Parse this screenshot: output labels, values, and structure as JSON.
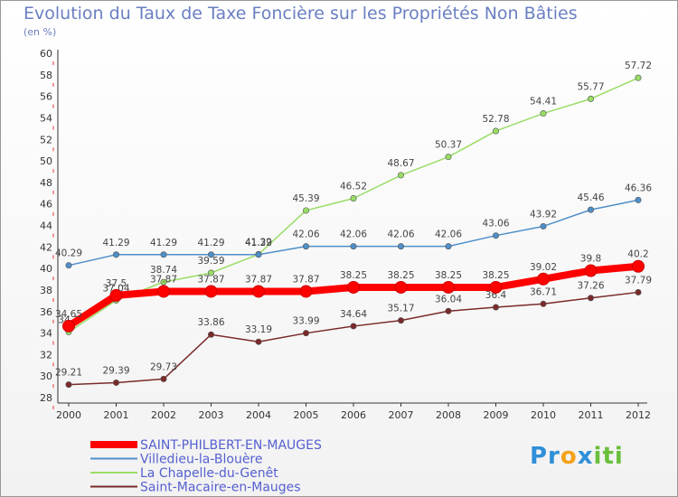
{
  "title": "Evolution du Taux de Taxe Foncière sur les Propriétés Non Bâties",
  "subtitle": "(en %)",
  "logo": {
    "p1": "Pr",
    "p2": "o",
    "p3": "x",
    "p4": "iti"
  },
  "chart_data": {
    "type": "line",
    "title": "Evolution du Taux de Taxe Foncière sur les Propriétés Non Bâties",
    "ylabel": "(en %)",
    "x": [
      "2000",
      "2001",
      "2002",
      "2003",
      "2004",
      "2005",
      "2006",
      "2007",
      "2008",
      "2009",
      "2010",
      "2011",
      "2012"
    ],
    "ylim": [
      28,
      60
    ],
    "yticks": [
      28,
      30,
      32,
      34,
      36,
      38,
      40,
      42,
      44,
      46,
      48,
      50,
      52,
      54,
      56,
      58,
      60
    ],
    "grid": false,
    "legend_position": "bottom-left",
    "series": [
      {
        "name": "SAINT-PHILBERT-EN-MAUGES",
        "color": "#ff0000",
        "width": 8,
        "labels": [
          "34.65",
          "37.5",
          "37.87",
          "37.87",
          "37.87",
          "37.87",
          "38.25",
          "38.25",
          "38.25",
          "38.25",
          "39.02",
          "39.8",
          "40.2"
        ],
        "values": [
          34.65,
          37.5,
          37.87,
          37.87,
          37.87,
          37.87,
          38.25,
          38.25,
          38.25,
          38.25,
          39.02,
          39.8,
          40.2
        ]
      },
      {
        "name": "Villedieu-la-Blouère",
        "color": "#4f8fc8",
        "width": 1.5,
        "labels": [
          "40.29",
          "41.29",
          "41.29",
          "41.29",
          "41.29",
          "42.06",
          "42.06",
          "42.06",
          "42.06",
          "43.06",
          "43.92",
          "45.46",
          "46.36"
        ],
        "values": [
          40.29,
          41.29,
          41.29,
          41.29,
          41.29,
          42.06,
          42.06,
          42.06,
          42.06,
          43.06,
          43.92,
          45.46,
          46.36
        ]
      },
      {
        "name": "La Chapelle-du-Genêt",
        "color": "#99dd66",
        "width": 1.5,
        "labels": [
          "34.1",
          "37.04",
          "38.74",
          "39.59",
          "41.32",
          "45.39",
          "46.52",
          "48.67",
          "50.37",
          "52.78",
          "54.41",
          "55.77",
          "57.72"
        ],
        "values": [
          34.1,
          37.04,
          38.74,
          39.59,
          41.32,
          45.39,
          46.52,
          48.67,
          50.37,
          52.78,
          54.41,
          55.77,
          57.72
        ]
      },
      {
        "name": "Saint-Macaire-en-Mauges",
        "color": "#7a2a2a",
        "width": 1.5,
        "labels": [
          "29.21",
          "29.39",
          "29.73",
          "33.86",
          "33.19",
          "33.99",
          "34.64",
          "35.17",
          "36.04",
          "36.4",
          "36.71",
          "37.26",
          "37.79"
        ],
        "values": [
          29.21,
          29.39,
          29.73,
          33.86,
          33.19,
          33.99,
          34.64,
          35.17,
          36.04,
          36.4,
          36.71,
          37.26,
          37.79
        ]
      }
    ]
  }
}
